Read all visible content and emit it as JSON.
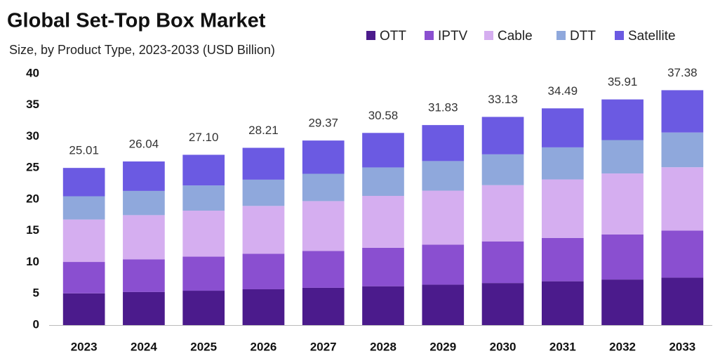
{
  "chart_data": {
    "type": "stacked_bar",
    "title": "Global Set-Top Box Market",
    "subtitle": "Size, by Product Type, 2023-2033 (USD Billion)",
    "categories": [
      "2023",
      "2024",
      "2025",
      "2026",
      "2027",
      "2028",
      "2029",
      "2030",
      "2031",
      "2032",
      "2033"
    ],
    "series": [
      {
        "name": "OTT",
        "color": "#4b1b8c",
        "values": [
          5.05,
          5.26,
          5.47,
          5.7,
          5.93,
          6.18,
          6.43,
          6.69,
          6.97,
          7.25,
          7.55
        ]
      },
      {
        "name": "IPTV",
        "color": "#8a4fd0",
        "values": [
          5.0,
          5.21,
          5.42,
          5.64,
          5.87,
          6.12,
          6.37,
          6.63,
          6.9,
          7.18,
          7.48
        ]
      },
      {
        "name": "Cable",
        "color": "#d5aef0",
        "values": [
          6.75,
          7.03,
          7.32,
          7.62,
          7.93,
          8.26,
          8.59,
          8.95,
          9.31,
          9.7,
          10.09
        ]
      },
      {
        "name": "DTT",
        "color": "#8fa8dc",
        "values": [
          3.7,
          3.85,
          4.01,
          4.18,
          4.35,
          4.53,
          4.71,
          4.9,
          5.1,
          5.31,
          5.53
        ]
      },
      {
        "name": "Satellite",
        "color": "#6b5ae2",
        "values": [
          4.51,
          4.69,
          4.88,
          5.07,
          5.29,
          5.49,
          5.73,
          5.96,
          6.21,
          6.47,
          6.73
        ]
      }
    ],
    "totals": [
      25.01,
      26.04,
      27.1,
      28.21,
      29.37,
      30.58,
      31.83,
      33.13,
      34.49,
      35.91,
      37.38
    ],
    "total_labels": [
      "25.01",
      "26.04",
      "27.10",
      "28.21",
      "29.37",
      "30.58",
      "31.83",
      "33.13",
      "34.49",
      "35.91",
      "37.38"
    ],
    "ylim": [
      0,
      40
    ],
    "yticks": [
      0,
      5,
      10,
      15,
      20,
      25,
      30,
      35,
      40
    ],
    "grid": false,
    "legend": "top-right"
  }
}
